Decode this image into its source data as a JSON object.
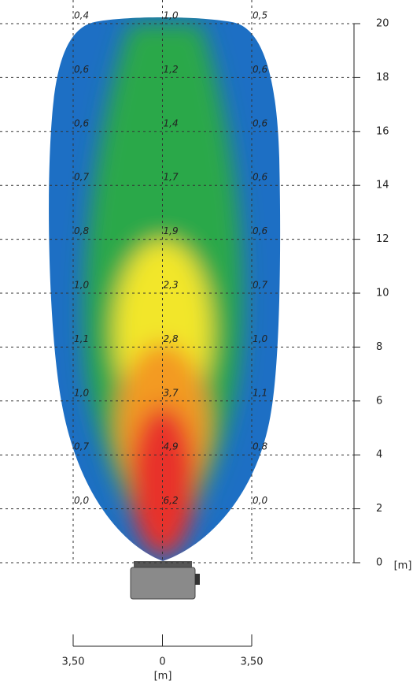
{
  "chart_data": {
    "type": "lux-grid",
    "xlabel": "[m]",
    "ylabel": "[m]",
    "xlim": [
      -3.5,
      3.5
    ],
    "xticks": [
      {
        "value": -3.5,
        "label": "3,50"
      },
      0,
      {
        "value": 3.5,
        "label": "3,50"
      }
    ],
    "ylim": [
      0,
      20
    ],
    "yticks": [
      0,
      2,
      4,
      6,
      8,
      10,
      12,
      14,
      16,
      18,
      20
    ],
    "y": [
      2,
      4,
      6,
      8,
      10,
      12,
      14,
      16,
      18,
      20
    ],
    "series": [
      {
        "x": -3.5,
        "values": [
          0.0,
          0.7,
          1.0,
          1.1,
          1.0,
          0.8,
          0.7,
          0.6,
          0.6,
          0.4
        ],
        "value_labels": [
          "0,0",
          "0,7",
          "1,0",
          "1,1",
          "1,0",
          "0,8",
          "0,7",
          "0,6",
          "0,6",
          "0,4"
        ]
      },
      {
        "x": 0,
        "values": [
          6.2,
          4.9,
          3.7,
          2.8,
          2.3,
          1.9,
          1.7,
          1.4,
          1.2,
          1.0
        ],
        "value_labels": [
          "6,2",
          "4,9",
          "3,7",
          "2,8",
          "2,3",
          "1,9",
          "1,7",
          "1,4",
          "1,2",
          "1,0"
        ]
      },
      {
        "x": 3.5,
        "values": [
          0.0,
          0.8,
          1.1,
          1.0,
          0.7,
          0.6,
          0.6,
          0.6,
          0.6,
          0.5
        ],
        "value_labels": [
          "0,0",
          "0,8",
          "1,1",
          "1,0",
          "0,7",
          "0,6",
          "0,6",
          "0,6",
          "0,6",
          "0,5"
        ]
      }
    ]
  }
}
